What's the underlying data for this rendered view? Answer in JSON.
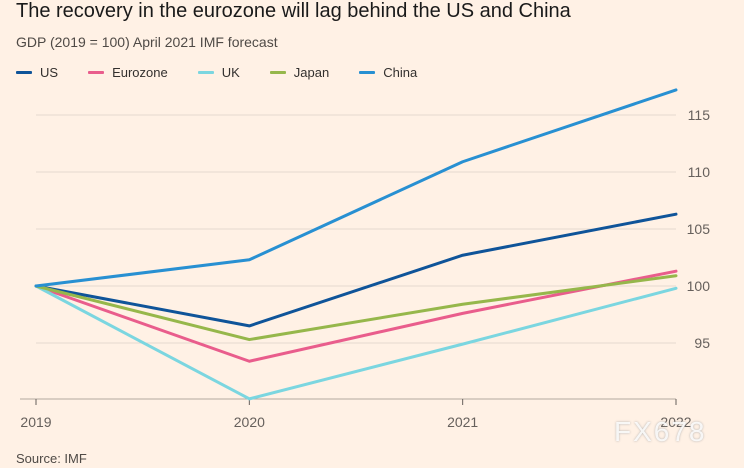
{
  "title": "The recovery in the eurozone will lag behind the US and China",
  "subtitle": "GDP (2019 = 100) April 2021 IMF forecast",
  "source": "Source: IMF",
  "watermark": "FX678",
  "chart_data": {
    "type": "line",
    "title": "The recovery in the eurozone will lag behind the US and China",
    "subtitle": "GDP (2019 = 100) April 2021 IMF forecast",
    "xlabel": "",
    "ylabel": "",
    "x": [
      "2019",
      "2020",
      "2021",
      "2022"
    ],
    "ylim": [
      90,
      117
    ],
    "yticks": [
      95,
      100,
      105,
      110,
      115
    ],
    "grid": true,
    "legend_position": "top-left",
    "series": [
      {
        "name": "US",
        "color": "#0f5499",
        "values": [
          100,
          96.5,
          102.7,
          106.3
        ]
      },
      {
        "name": "Eurozone",
        "color": "#e95d8c",
        "values": [
          100,
          93.4,
          97.6,
          101.3
        ]
      },
      {
        "name": "UK",
        "color": "#7bd6e0",
        "values": [
          100,
          90.1,
          94.9,
          99.8
        ]
      },
      {
        "name": "Japan",
        "color": "#96b74b",
        "values": [
          100,
          95.3,
          98.4,
          100.9
        ]
      },
      {
        "name": "China",
        "color": "#2890d2",
        "values": [
          100,
          102.3,
          110.9,
          117.2
        ]
      }
    ]
  }
}
